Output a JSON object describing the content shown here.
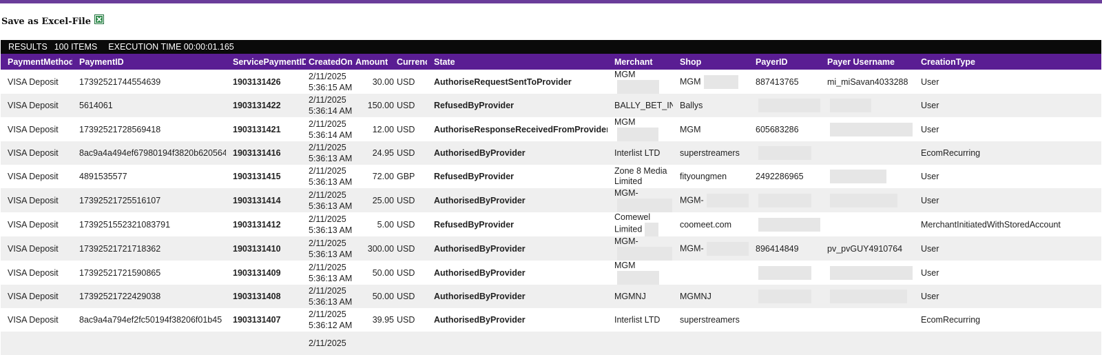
{
  "export": {
    "label": "Save as Excel-File",
    "icon": "excel-icon"
  },
  "results": {
    "label": "RESULTS",
    "items": "100 ITEMS",
    "exec": "EXECUTION TIME 00:00:01.165"
  },
  "columns": [
    "PaymentMethod",
    "PaymentID",
    "ServicePaymentID",
    "CreatedOn",
    "Amount",
    "Currency",
    "State",
    "Merchant",
    "Shop",
    "PayerID",
    "Payer Username",
    "CreationType"
  ],
  "rows": [
    {
      "method": "VISA Deposit",
      "pid": "17392521744554639",
      "spid": "1903131426",
      "date": "2/11/2025",
      "time": "5:36:15 AM",
      "amount": "30.00",
      "cur": "USD",
      "state": "AuthoriseRequestSentToProvider",
      "merchant": "MGM",
      "shop": "MGM",
      "payer": "887413765",
      "username": "mi_miSavan4033288",
      "ctype": "User"
    },
    {
      "method": "VISA Deposit",
      "pid": "5614061",
      "spid": "1903131422",
      "date": "2/11/2025",
      "time": "5:36:14 AM",
      "amount": "150.00",
      "cur": "USD",
      "state": "RefusedByProvider",
      "merchant": "BALLY_BET_IN",
      "shop": "Ballys",
      "payer": "",
      "username": "",
      "ctype": "User"
    },
    {
      "method": "VISA Deposit",
      "pid": "17392521728569418",
      "spid": "1903131421",
      "date": "2/11/2025",
      "time": "5:36:14 AM",
      "amount": "12.00",
      "cur": "USD",
      "state": "AuthoriseResponseReceivedFromProvider",
      "merchant": "MGM",
      "shop": "MGM",
      "payer": "605683286",
      "username": "",
      "ctype": "User"
    },
    {
      "method": "VISA Deposit",
      "pid": "8ac9a4a494ef67980194f3820b620564",
      "spid": "1903131416",
      "date": "2/11/2025",
      "time": "5:36:13 AM",
      "amount": "24.95",
      "cur": "USD",
      "state": "AuthorisedByProvider",
      "merchant": "Interlist LTD",
      "shop": "superstreamers",
      "payer": "",
      "username": "",
      "ctype": "EcomRecurring"
    },
    {
      "method": "VISA Deposit",
      "pid": "4891535577",
      "spid": "1903131415",
      "date": "2/11/2025",
      "time": "5:36:13 AM",
      "amount": "72.00",
      "cur": "GBP",
      "state": "RefusedByProvider",
      "merchant": "Zone 8 Media Limited",
      "shop": "fityoungmen",
      "payer": "2492286965",
      "username": "",
      "ctype": "User"
    },
    {
      "method": "VISA Deposit",
      "pid": "17392521725516107",
      "spid": "1903131414",
      "date": "2/11/2025",
      "time": "5:36:13 AM",
      "amount": "25.00",
      "cur": "USD",
      "state": "AuthorisedByProvider",
      "merchant": "MGM-",
      "shop": "MGM-",
      "payer": "",
      "username": "",
      "ctype": "User"
    },
    {
      "method": "VISA Deposit",
      "pid": "1739251552321083791",
      "spid": "1903131412",
      "date": "2/11/2025",
      "time": "5:36:13 AM",
      "amount": "5.00",
      "cur": "USD",
      "state": "RefusedByProvider",
      "merchant": "Comewel Limited",
      "shop": "coomeet.com",
      "payer": "",
      "username": "",
      "ctype": "MerchantInitiatedWithStoredAccount"
    },
    {
      "method": "VISA Deposit",
      "pid": "17392521721718362",
      "spid": "1903131410",
      "date": "2/11/2025",
      "time": "5:36:13 AM",
      "amount": "300.00",
      "cur": "USD",
      "state": "AuthorisedByProvider",
      "merchant": "MGM-",
      "shop": "MGM-",
      "payer": "896414849",
      "username": "pv_pvGUY4910764",
      "ctype": "User"
    },
    {
      "method": "VISA Deposit",
      "pid": "17392521721590865",
      "spid": "1903131409",
      "date": "2/11/2025",
      "time": "5:36:13 AM",
      "amount": "50.00",
      "cur": "USD",
      "state": "AuthorisedByProvider",
      "merchant": "MGM",
      "shop": "",
      "payer": "",
      "username": "",
      "ctype": "User"
    },
    {
      "method": "VISA Deposit",
      "pid": "17392521722429038",
      "spid": "1903131408",
      "date": "2/11/2025",
      "time": "5:36:13 AM",
      "amount": "50.00",
      "cur": "USD",
      "state": "AuthorisedByProvider",
      "merchant": "MGMNJ",
      "shop": "MGMNJ",
      "payer": "",
      "username": "",
      "ctype": "User"
    },
    {
      "method": "VISA Deposit",
      "pid": "8ac9a4a794ef2fc50194f38206f01b45",
      "spid": "1903131407",
      "date": "2/11/2025",
      "time": "5:36:12 AM",
      "amount": "39.95",
      "cur": "USD",
      "state": "AuthorisedByProvider",
      "merchant": "Interlist LTD",
      "shop": "superstreamers",
      "payer": "",
      "username": "",
      "ctype": "EcomRecurring"
    },
    {
      "method": "",
      "pid": "",
      "spid": "",
      "date": "2/11/2025",
      "time": "",
      "amount": "",
      "cur": "",
      "state": "",
      "merchant": "",
      "shop": "",
      "payer": "",
      "username": "",
      "ctype": ""
    }
  ],
  "colors": {
    "accent": "#5a1d93",
    "top_bar": "#6a3d9a",
    "results_bar": "#0a0a0a",
    "row_alt": "#efefef",
    "redaction": "#e6e6e6"
  }
}
